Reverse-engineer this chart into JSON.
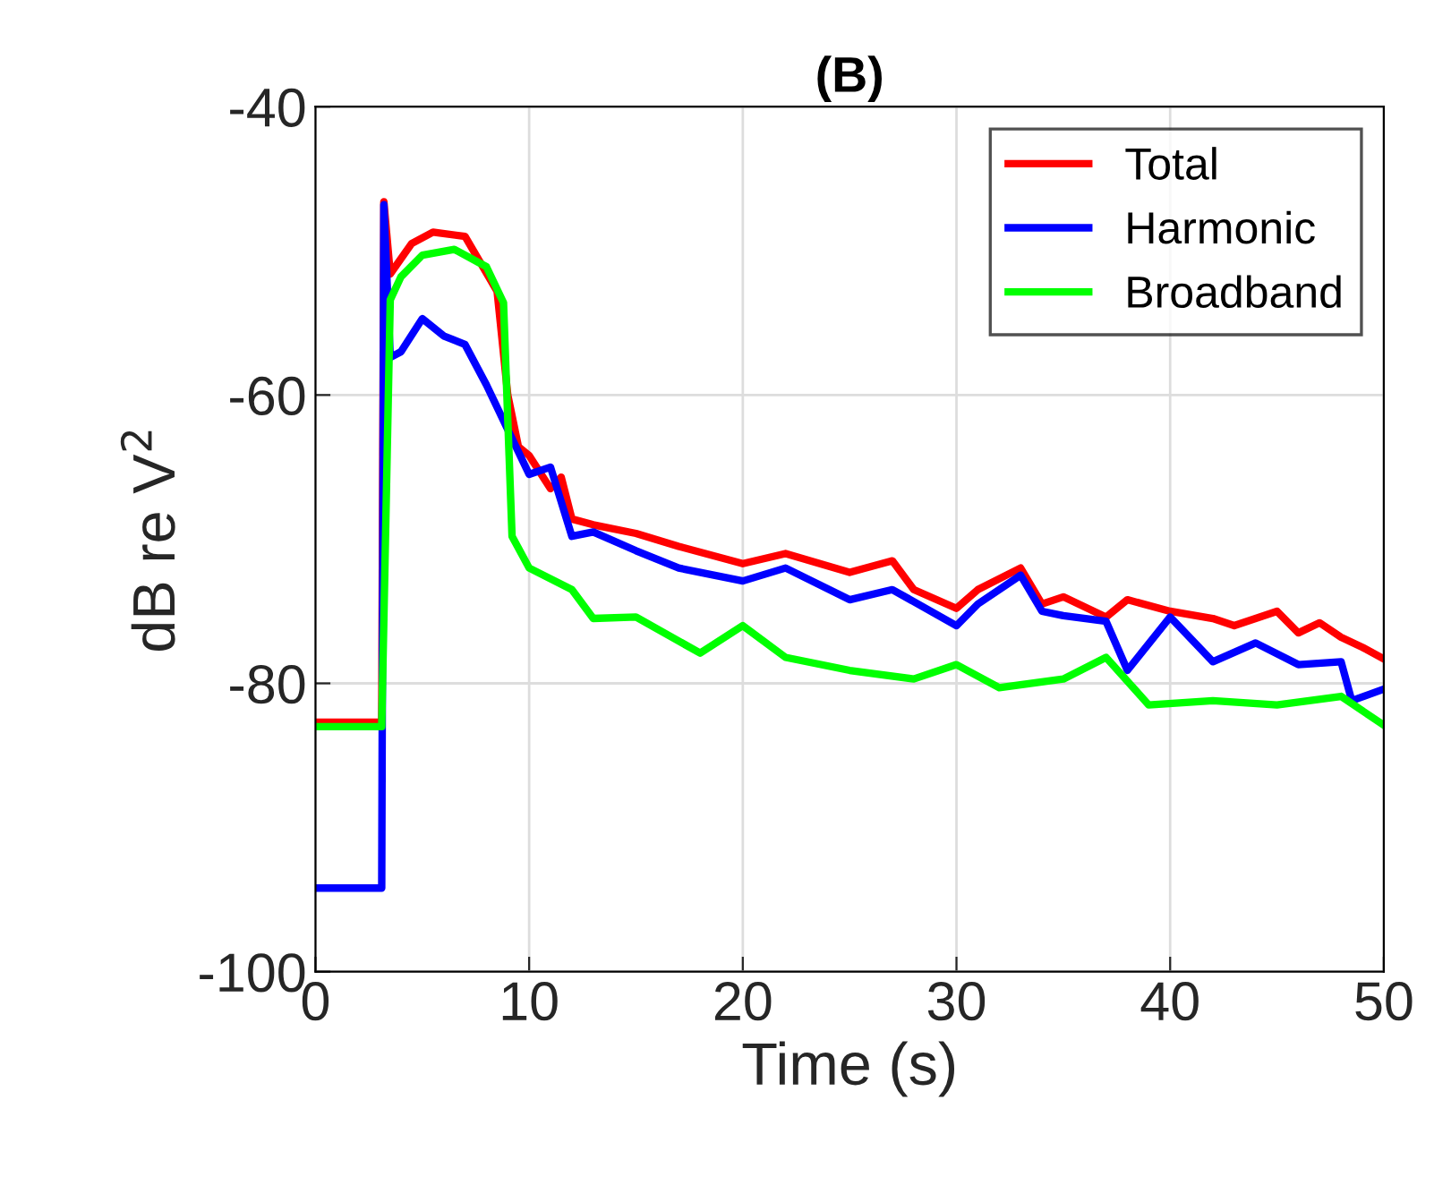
{
  "chart_data": {
    "type": "line",
    "title": "(B)",
    "xlabel": "Time (s)",
    "ylabel": "dB re V$^{2}$",
    "xlim": [
      0,
      50
    ],
    "ylim": [
      -100,
      -40
    ],
    "xticks": [
      0,
      10,
      20,
      30,
      40,
      50
    ],
    "yticks": [
      -100,
      -80,
      -60,
      -40
    ],
    "grid": true,
    "legend": "top right",
    "line_style": "solid",
    "series": [
      {
        "name": "Total",
        "color": "#ff0000",
        "x": [
          0,
          3.1,
          3.2,
          3.5,
          4.5,
          5.5,
          7,
          8.5,
          9,
          9.5,
          10,
          11,
          11.5,
          12,
          13,
          15,
          17,
          20,
          22,
          25,
          27,
          28,
          30,
          31,
          33,
          34,
          35,
          37,
          38,
          40,
          42,
          43,
          45,
          46,
          47,
          48,
          49,
          50
        ],
        "values": [
          -82.7,
          -82.7,
          -46.6,
          -51.6,
          -49.5,
          -48.7,
          -49,
          -52.8,
          -60,
          -63.6,
          -64.2,
          -66.5,
          -65.7,
          -68.6,
          -69,
          -69.6,
          -70.5,
          -71.7,
          -71,
          -72.3,
          -71.5,
          -73.5,
          -74.8,
          -73.5,
          -72,
          -74.5,
          -74,
          -75.4,
          -74.2,
          -75,
          -75.5,
          -76,
          -75,
          -76.5,
          -75.8,
          -76.8,
          -77.5,
          -78.3
        ]
      },
      {
        "name": "Harmonic",
        "color": "#0000ff",
        "x": [
          0,
          3.1,
          3.2,
          3.5,
          4,
          5,
          6,
          7,
          8,
          9,
          10,
          11,
          12,
          13,
          15,
          17,
          20,
          22,
          25,
          27,
          30,
          31,
          33,
          34,
          35,
          37,
          38,
          40,
          42,
          44,
          46,
          48,
          48.5,
          50
        ],
        "values": [
          -94.2,
          -94.2,
          -46.8,
          -57.4,
          -57,
          -54.7,
          -55.9,
          -56.5,
          -59.3,
          -62.4,
          -65.5,
          -65,
          -69.8,
          -69.5,
          -70.8,
          -72,
          -72.9,
          -72,
          -74.2,
          -73.5,
          -76,
          -74.5,
          -72.5,
          -75,
          -75.3,
          -75.7,
          -79.1,
          -75.4,
          -78.5,
          -77.2,
          -78.7,
          -78.5,
          -81.2,
          -80.4
        ]
      },
      {
        "name": "Broadband",
        "color": "#00ff00",
        "x": [
          0,
          3.1,
          3.5,
          4,
          5,
          6.5,
          8,
          8.8,
          9.2,
          10,
          12,
          13,
          15,
          18,
          20,
          22,
          25,
          28,
          30,
          32,
          35,
          37,
          39,
          42,
          45,
          48,
          50
        ],
        "values": [
          -83,
          -83,
          -53.4,
          -51.8,
          -50.3,
          -49.9,
          -51.1,
          -53.6,
          -69.8,
          -72,
          -73.5,
          -75.5,
          -75.4,
          -77.9,
          -76,
          -78.2,
          -79.1,
          -79.7,
          -78.7,
          -80.3,
          -79.7,
          -78.2,
          -81.5,
          -81.2,
          -81.5,
          -80.9,
          -82.9
        ]
      }
    ]
  }
}
